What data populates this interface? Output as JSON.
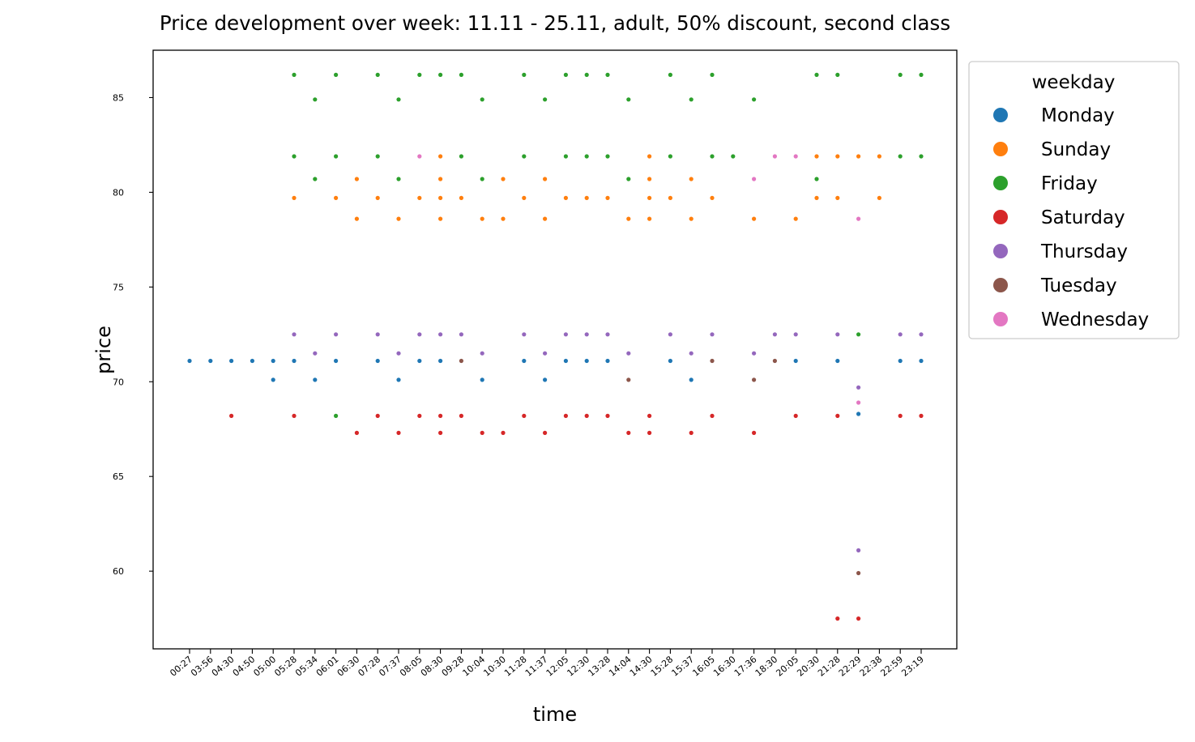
{
  "chart_data": {
    "type": "scatter",
    "title": "Price development over week: 11.11 - 25.11, adult, 50% discount, second class",
    "xlabel": "time",
    "ylabel": "price",
    "x_categories": [
      "00:27",
      "03:56",
      "04:30",
      "04:50",
      "05:00",
      "05:28",
      "05:34",
      "06:01",
      "06:30",
      "07:28",
      "07:37",
      "08:05",
      "08:30",
      "09:28",
      "10:04",
      "10:30",
      "11:28",
      "11:37",
      "12:05",
      "12:30",
      "13:28",
      "14:04",
      "14:30",
      "15:28",
      "15:37",
      "16:05",
      "16:30",
      "17:36",
      "18:30",
      "20:05",
      "20:30",
      "21:28",
      "22:29",
      "22:38",
      "22:59",
      "23:19"
    ],
    "y_ticks": [
      60,
      65,
      70,
      75,
      80,
      85
    ],
    "ylim": [
      55.9,
      87.5
    ],
    "grid": false,
    "legend": {
      "title": "weekday",
      "placement": "outside-right-top"
    },
    "series": [
      {
        "name": "Monday",
        "color": "#1f77b4",
        "points": [
          [
            "00:27",
            71.1
          ],
          [
            "03:56",
            71.1
          ],
          [
            "04:30",
            71.1
          ],
          [
            "04:50",
            71.1
          ],
          [
            "05:00",
            71.1
          ],
          [
            "05:00",
            70.1
          ],
          [
            "05:28",
            71.1
          ],
          [
            "05:34",
            70.1
          ],
          [
            "06:01",
            71.1
          ],
          [
            "07:28",
            71.1
          ],
          [
            "07:37",
            70.1
          ],
          [
            "08:05",
            71.1
          ],
          [
            "08:30",
            71.1
          ],
          [
            "10:04",
            70.1
          ],
          [
            "11:28",
            71.1
          ],
          [
            "11:37",
            70.1
          ],
          [
            "12:05",
            71.1
          ],
          [
            "12:30",
            71.1
          ],
          [
            "13:28",
            71.1
          ],
          [
            "15:28",
            71.1
          ],
          [
            "15:37",
            70.1
          ],
          [
            "20:05",
            71.1
          ],
          [
            "21:28",
            71.1
          ],
          [
            "22:29",
            68.3
          ],
          [
            "22:59",
            71.1
          ],
          [
            "23:19",
            71.1
          ]
        ]
      },
      {
        "name": "Sunday",
        "color": "#ff7f0e",
        "points": [
          [
            "05:28",
            79.7
          ],
          [
            "06:01",
            79.7
          ],
          [
            "06:30",
            80.7
          ],
          [
            "06:30",
            78.6
          ],
          [
            "07:28",
            79.7
          ],
          [
            "07:37",
            78.6
          ],
          [
            "08:05",
            79.7
          ],
          [
            "08:30",
            81.9
          ],
          [
            "08:30",
            80.7
          ],
          [
            "08:30",
            79.7
          ],
          [
            "08:30",
            78.6
          ],
          [
            "09:28",
            79.7
          ],
          [
            "10:04",
            78.6
          ],
          [
            "10:30",
            80.7
          ],
          [
            "10:30",
            78.6
          ],
          [
            "11:28",
            79.7
          ],
          [
            "11:37",
            80.7
          ],
          [
            "11:37",
            78.6
          ],
          [
            "12:05",
            79.7
          ],
          [
            "12:30",
            79.7
          ],
          [
            "13:28",
            79.7
          ],
          [
            "14:04",
            78.6
          ],
          [
            "14:30",
            81.9
          ],
          [
            "14:30",
            80.7
          ],
          [
            "14:30",
            79.7
          ],
          [
            "14:30",
            78.6
          ],
          [
            "15:28",
            79.7
          ],
          [
            "15:37",
            80.7
          ],
          [
            "15:37",
            78.6
          ],
          [
            "16:05",
            79.7
          ],
          [
            "17:36",
            78.6
          ],
          [
            "20:05",
            78.6
          ],
          [
            "20:30",
            81.9
          ],
          [
            "20:30",
            79.7
          ],
          [
            "21:28",
            81.9
          ],
          [
            "21:28",
            79.7
          ],
          [
            "22:29",
            81.9
          ],
          [
            "22:38",
            81.9
          ],
          [
            "22:38",
            79.7
          ]
        ]
      },
      {
        "name": "Friday",
        "color": "#2ca02c",
        "points": [
          [
            "05:28",
            86.2
          ],
          [
            "05:28",
            81.9
          ],
          [
            "05:34",
            84.9
          ],
          [
            "05:34",
            80.7
          ],
          [
            "06:01",
            86.2
          ],
          [
            "06:01",
            81.9
          ],
          [
            "06:01",
            68.2
          ],
          [
            "07:28",
            86.2
          ],
          [
            "07:28",
            81.9
          ],
          [
            "07:37",
            84.9
          ],
          [
            "07:37",
            80.7
          ],
          [
            "08:05",
            86.2
          ],
          [
            "08:30",
            86.2
          ],
          [
            "09:28",
            86.2
          ],
          [
            "09:28",
            81.9
          ],
          [
            "10:04",
            84.9
          ],
          [
            "10:04",
            80.7
          ],
          [
            "11:28",
            86.2
          ],
          [
            "11:28",
            81.9
          ],
          [
            "11:37",
            84.9
          ],
          [
            "12:05",
            86.2
          ],
          [
            "12:05",
            81.9
          ],
          [
            "12:30",
            86.2
          ],
          [
            "12:30",
            81.9
          ],
          [
            "13:28",
            86.2
          ],
          [
            "13:28",
            81.9
          ],
          [
            "14:04",
            84.9
          ],
          [
            "14:04",
            80.7
          ],
          [
            "15:28",
            86.2
          ],
          [
            "15:28",
            81.9
          ],
          [
            "15:37",
            84.9
          ],
          [
            "16:05",
            86.2
          ],
          [
            "16:05",
            81.9
          ],
          [
            "16:30",
            81.9
          ],
          [
            "17:36",
            84.9
          ],
          [
            "20:30",
            86.2
          ],
          [
            "20:30",
            80.7
          ],
          [
            "21:28",
            86.2
          ],
          [
            "22:29",
            72.5
          ],
          [
            "22:59",
            86.2
          ],
          [
            "22:59",
            81.9
          ],
          [
            "23:19",
            86.2
          ],
          [
            "23:19",
            81.9
          ]
        ]
      },
      {
        "name": "Saturday",
        "color": "#d62728",
        "points": [
          [
            "04:30",
            68.2
          ],
          [
            "05:28",
            68.2
          ],
          [
            "06:30",
            67.3
          ],
          [
            "07:28",
            68.2
          ],
          [
            "07:37",
            67.3
          ],
          [
            "08:05",
            68.2
          ],
          [
            "08:30",
            68.2
          ],
          [
            "08:30",
            67.3
          ],
          [
            "09:28",
            68.2
          ],
          [
            "10:04",
            67.3
          ],
          [
            "10:30",
            67.3
          ],
          [
            "11:28",
            68.2
          ],
          [
            "11:37",
            67.3
          ],
          [
            "12:05",
            68.2
          ],
          [
            "12:30",
            68.2
          ],
          [
            "13:28",
            68.2
          ],
          [
            "14:04",
            67.3
          ],
          [
            "14:30",
            68.2
          ],
          [
            "14:30",
            67.3
          ],
          [
            "15:37",
            67.3
          ],
          [
            "16:05",
            68.2
          ],
          [
            "17:36",
            67.3
          ],
          [
            "20:05",
            68.2
          ],
          [
            "21:28",
            68.2
          ],
          [
            "21:28",
            57.5
          ],
          [
            "22:29",
            57.5
          ],
          [
            "22:59",
            68.2
          ],
          [
            "23:19",
            68.2
          ]
        ]
      },
      {
        "name": "Thursday",
        "color": "#9467bd",
        "points": [
          [
            "05:28",
            72.5
          ],
          [
            "05:34",
            71.5
          ],
          [
            "06:01",
            72.5
          ],
          [
            "07:28",
            72.5
          ],
          [
            "07:37",
            71.5
          ],
          [
            "08:05",
            72.5
          ],
          [
            "08:30",
            72.5
          ],
          [
            "09:28",
            72.5
          ],
          [
            "10:04",
            71.5
          ],
          [
            "11:28",
            72.5
          ],
          [
            "11:37",
            71.5
          ],
          [
            "12:05",
            72.5
          ],
          [
            "12:30",
            72.5
          ],
          [
            "13:28",
            72.5
          ],
          [
            "14:04",
            71.5
          ],
          [
            "15:28",
            72.5
          ],
          [
            "15:37",
            71.5
          ],
          [
            "16:05",
            72.5
          ],
          [
            "17:36",
            71.5
          ],
          [
            "18:30",
            72.5
          ],
          [
            "20:05",
            72.5
          ],
          [
            "21:28",
            72.5
          ],
          [
            "22:29",
            69.7
          ],
          [
            "22:29",
            61.1
          ],
          [
            "22:59",
            72.5
          ],
          [
            "23:19",
            72.5
          ]
        ]
      },
      {
        "name": "Tuesday",
        "color": "#8c564b",
        "points": [
          [
            "09:28",
            71.1
          ],
          [
            "14:04",
            70.1
          ],
          [
            "16:05",
            71.1
          ],
          [
            "17:36",
            70.1
          ],
          [
            "18:30",
            71.1
          ],
          [
            "22:29",
            59.9
          ]
        ]
      },
      {
        "name": "Wednesday",
        "color": "#e377c2",
        "points": [
          [
            "08:05",
            81.9
          ],
          [
            "17:36",
            80.7
          ],
          [
            "18:30",
            81.9
          ],
          [
            "20:05",
            81.9
          ],
          [
            "22:29",
            78.6
          ],
          [
            "22:29",
            68.9
          ]
        ]
      }
    ]
  }
}
